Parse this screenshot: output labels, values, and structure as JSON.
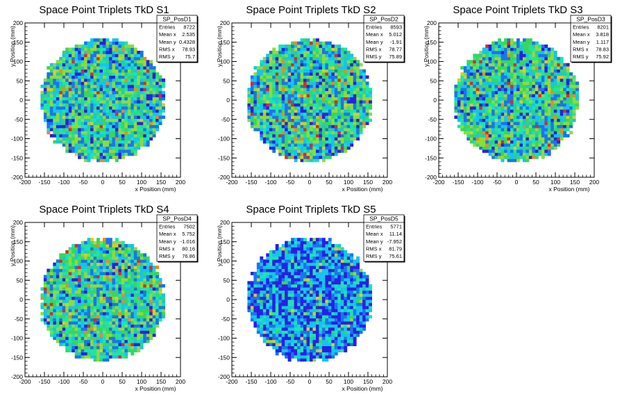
{
  "chart_data": [
    {
      "type": "heatmap",
      "title": "Space Point Triplets TkD S1",
      "xlabel": "x Position (mm)",
      "ylabel": "y Position (mm)",
      "xlim": [
        -200,
        200
      ],
      "ylim": [
        -200,
        200
      ],
      "x_ticks": [
        "-200",
        "-150",
        "-100",
        "-50",
        "0",
        "50",
        "100",
        "150",
        "200"
      ],
      "y_ticks": [
        "-200",
        "-150",
        "-100",
        "-50",
        "0",
        "50",
        "100",
        "150",
        "200"
      ],
      "radius": 160,
      "bin_width": 8,
      "seed": 11,
      "stats": {
        "name": "SP_PosD1",
        "rows": [
          {
            "label": "Entries",
            "value": "8722"
          },
          {
            "label": "Mean x",
            "value": "2.535"
          },
          {
            "label": "Mean y",
            "value": "0.4328"
          },
          {
            "label": "RMS x",
            "value": "78.93"
          },
          {
            "label": "RMS y",
            "value": "75.7"
          }
        ]
      }
    },
    {
      "type": "heatmap",
      "title": "Space Point Triplets TkD S2",
      "xlabel": "x Position (mm)",
      "ylabel": "y Position (mm)",
      "xlim": [
        -200,
        200
      ],
      "ylim": [
        -200,
        200
      ],
      "x_ticks": [
        "-200",
        "-150",
        "-100",
        "-50",
        "0",
        "50",
        "100",
        "150",
        "200"
      ],
      "y_ticks": [
        "-200",
        "-150",
        "-100",
        "-50",
        "0",
        "50",
        "100",
        "150",
        "200"
      ],
      "radius": 160,
      "bin_width": 8,
      "seed": 23,
      "stats": {
        "name": "SP_PosD2",
        "rows": [
          {
            "label": "Entries",
            "value": "8593"
          },
          {
            "label": "Mean x",
            "value": "5.012"
          },
          {
            "label": "Mean y",
            "value": "-1.91"
          },
          {
            "label": "RMS x",
            "value": "78.77"
          },
          {
            "label": "RMS y",
            "value": "75.89"
          }
        ]
      }
    },
    {
      "type": "heatmap",
      "title": "Space Point Triplets TkD S3",
      "xlabel": "x Position (mm)",
      "ylabel": "y Position (mm)",
      "xlim": [
        -200,
        200
      ],
      "ylim": [
        -200,
        200
      ],
      "x_ticks": [
        "-200",
        "-150",
        "-100",
        "-50",
        "0",
        "50",
        "100",
        "150",
        "200"
      ],
      "y_ticks": [
        "-200",
        "-150",
        "-100",
        "-50",
        "0",
        "50",
        "100",
        "150",
        "200"
      ],
      "radius": 160,
      "bin_width": 8,
      "seed": 37,
      "stats": {
        "name": "SP_PosD3",
        "rows": [
          {
            "label": "Entries",
            "value": "8201"
          },
          {
            "label": "Mean x",
            "value": "3.818"
          },
          {
            "label": "Mean y",
            "value": "1.117"
          },
          {
            "label": "RMS x",
            "value": "78.83"
          },
          {
            "label": "RMS y",
            "value": "75.92"
          }
        ]
      }
    },
    {
      "type": "heatmap",
      "title": "Space Point Triplets TkD S4",
      "xlabel": "x Position (mm)",
      "ylabel": "y Position (mm)",
      "xlim": [
        -200,
        200
      ],
      "ylim": [
        -200,
        200
      ],
      "x_ticks": [
        "-200",
        "-150",
        "-100",
        "-50",
        "0",
        "50",
        "100",
        "150",
        "200"
      ],
      "y_ticks": [
        "-200",
        "-150",
        "-100",
        "-50",
        "0",
        "50",
        "100",
        "150",
        "200"
      ],
      "radius": 160,
      "bin_width": 8,
      "seed": 41,
      "stats": {
        "name": "SP_PosD4",
        "rows": [
          {
            "label": "Entries",
            "value": "7502"
          },
          {
            "label": "Mean x",
            "value": "5.752"
          },
          {
            "label": "Mean y",
            "value": "-1.016"
          },
          {
            "label": "RMS x",
            "value": "80.16"
          },
          {
            "label": "RMS y",
            "value": "76.86"
          }
        ]
      }
    },
    {
      "type": "heatmap",
      "title": "Space Point Triplets TkD S5",
      "xlabel": "x Position (mm)",
      "ylabel": "y Position (mm)",
      "xlim": [
        -200,
        200
      ],
      "ylim": [
        -200,
        200
      ],
      "x_ticks": [
        "-200",
        "-150",
        "-100",
        "-50",
        "0",
        "50",
        "100",
        "150",
        "200"
      ],
      "y_ticks": [
        "-200",
        "-150",
        "-100",
        "-50",
        "0",
        "50",
        "100",
        "150",
        "200"
      ],
      "radius": 160,
      "bin_width": 8,
      "seed": 59,
      "stats": {
        "name": "SP_PosD5",
        "rows": [
          {
            "label": "Entries",
            "value": "5771"
          },
          {
            "label": "Mean x",
            "value": "11.14"
          },
          {
            "label": "Mean y",
            "value": "-7.952"
          },
          {
            "label": "RMS x",
            "value": "81.79"
          },
          {
            "label": "RMS y",
            "value": "75.61"
          }
        ]
      }
    }
  ],
  "palette": [
    "#2a1fe6",
    "#1a74f0",
    "#16c4ec",
    "#1ee3b0",
    "#3ad65a",
    "#8fdc34",
    "#d8cf20",
    "#f08a18",
    "#e3281c"
  ]
}
